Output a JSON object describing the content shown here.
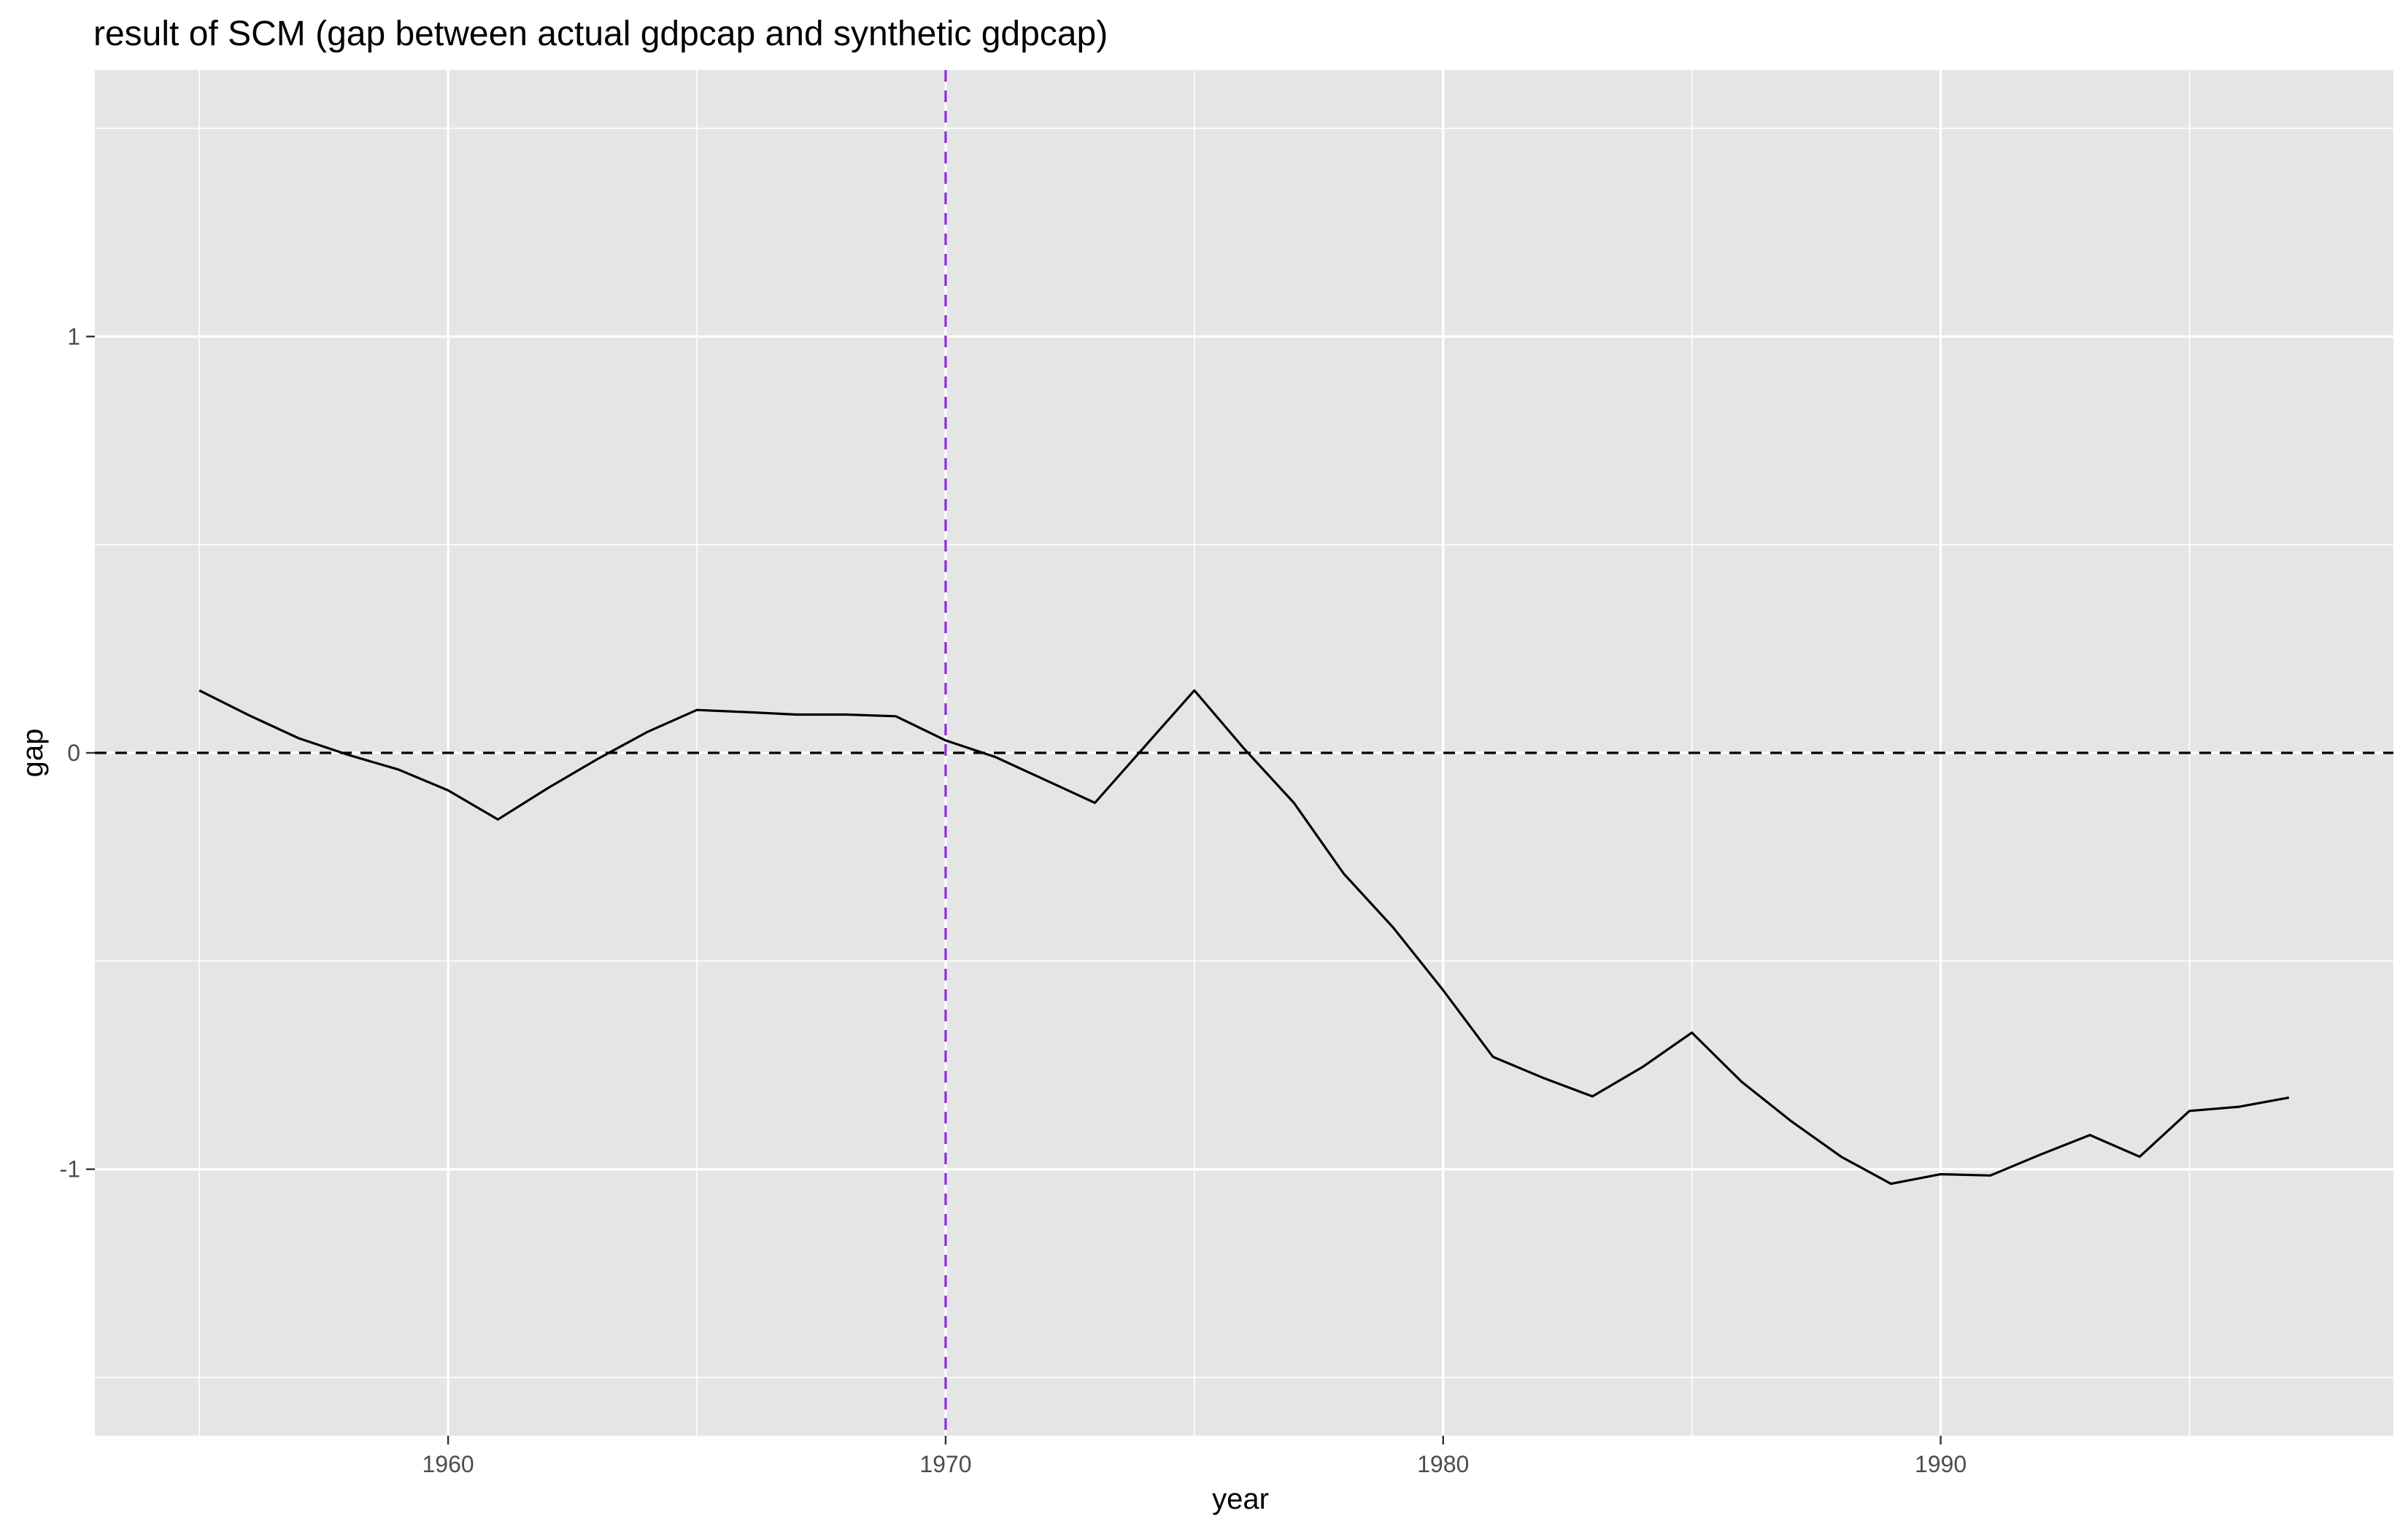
{
  "chart_data": {
    "type": "line",
    "title": "result of SCM (gap between actual gdpcap and synthetic gdpcap)",
    "xlabel": "year",
    "ylabel": "gap",
    "xlim": [
      1952.9,
      1999.1
    ],
    "ylim": [
      -1.64,
      1.64
    ],
    "x_ticks": [
      1960,
      1970,
      1980,
      1990
    ],
    "x_tick_labels": [
      "1960",
      "1970",
      "1980",
      "1990"
    ],
    "y_ticks": [
      -1,
      0,
      1
    ],
    "y_tick_labels": [
      "-1",
      "0",
      "1"
    ],
    "x_minor_grid": [
      1955,
      1965,
      1975,
      1985,
      1995
    ],
    "y_minor_grid": [
      -1.5,
      -0.5,
      0.5,
      1.5
    ],
    "grid": true,
    "reference_lines": [
      {
        "orientation": "horizontal",
        "value": 0,
        "style": "dashed",
        "color": "#000000"
      },
      {
        "orientation": "vertical",
        "value": 1970,
        "style": "dashed",
        "color": "#8a2be2"
      }
    ],
    "series": [
      {
        "x": [
          1955,
          1956,
          1957,
          1958,
          1959,
          1960,
          1961,
          1962,
          1963,
          1964,
          1965,
          1966,
          1967,
          1968,
          1969,
          1970,
          1971,
          1972,
          1973,
          1974,
          1975,
          1976,
          1977,
          1978,
          1979,
          1980,
          1981,
          1982,
          1983,
          1984,
          1985,
          1986,
          1987,
          1988,
          1989,
          1990,
          1991,
          1992,
          1993,
          1994,
          1995,
          1996,
          1997
        ],
        "values": [
          0.15,
          0.09,
          0.035,
          -0.005,
          -0.04,
          -0.09,
          -0.16,
          -0.085,
          -0.015,
          0.05,
          0.103,
          0.098,
          0.092,
          0.092,
          0.088,
          0.03,
          -0.01,
          -0.065,
          -0.12,
          0.015,
          0.15,
          0.01,
          -0.12,
          -0.29,
          -0.42,
          -0.57,
          -0.73,
          -0.78,
          -0.825,
          -0.755,
          -0.672,
          -0.79,
          -0.885,
          -0.97,
          -1.035,
          -1.012,
          -1.015,
          -0.965,
          -0.918,
          -0.97,
          -0.86,
          -0.85,
          -0.828
        ],
        "color": "#000000"
      }
    ]
  },
  "colors": {
    "panel_background": "#e5e5e5",
    "grid_major": "#ffffff",
    "line": "#000000",
    "treatment_line": "#8a2be2"
  }
}
